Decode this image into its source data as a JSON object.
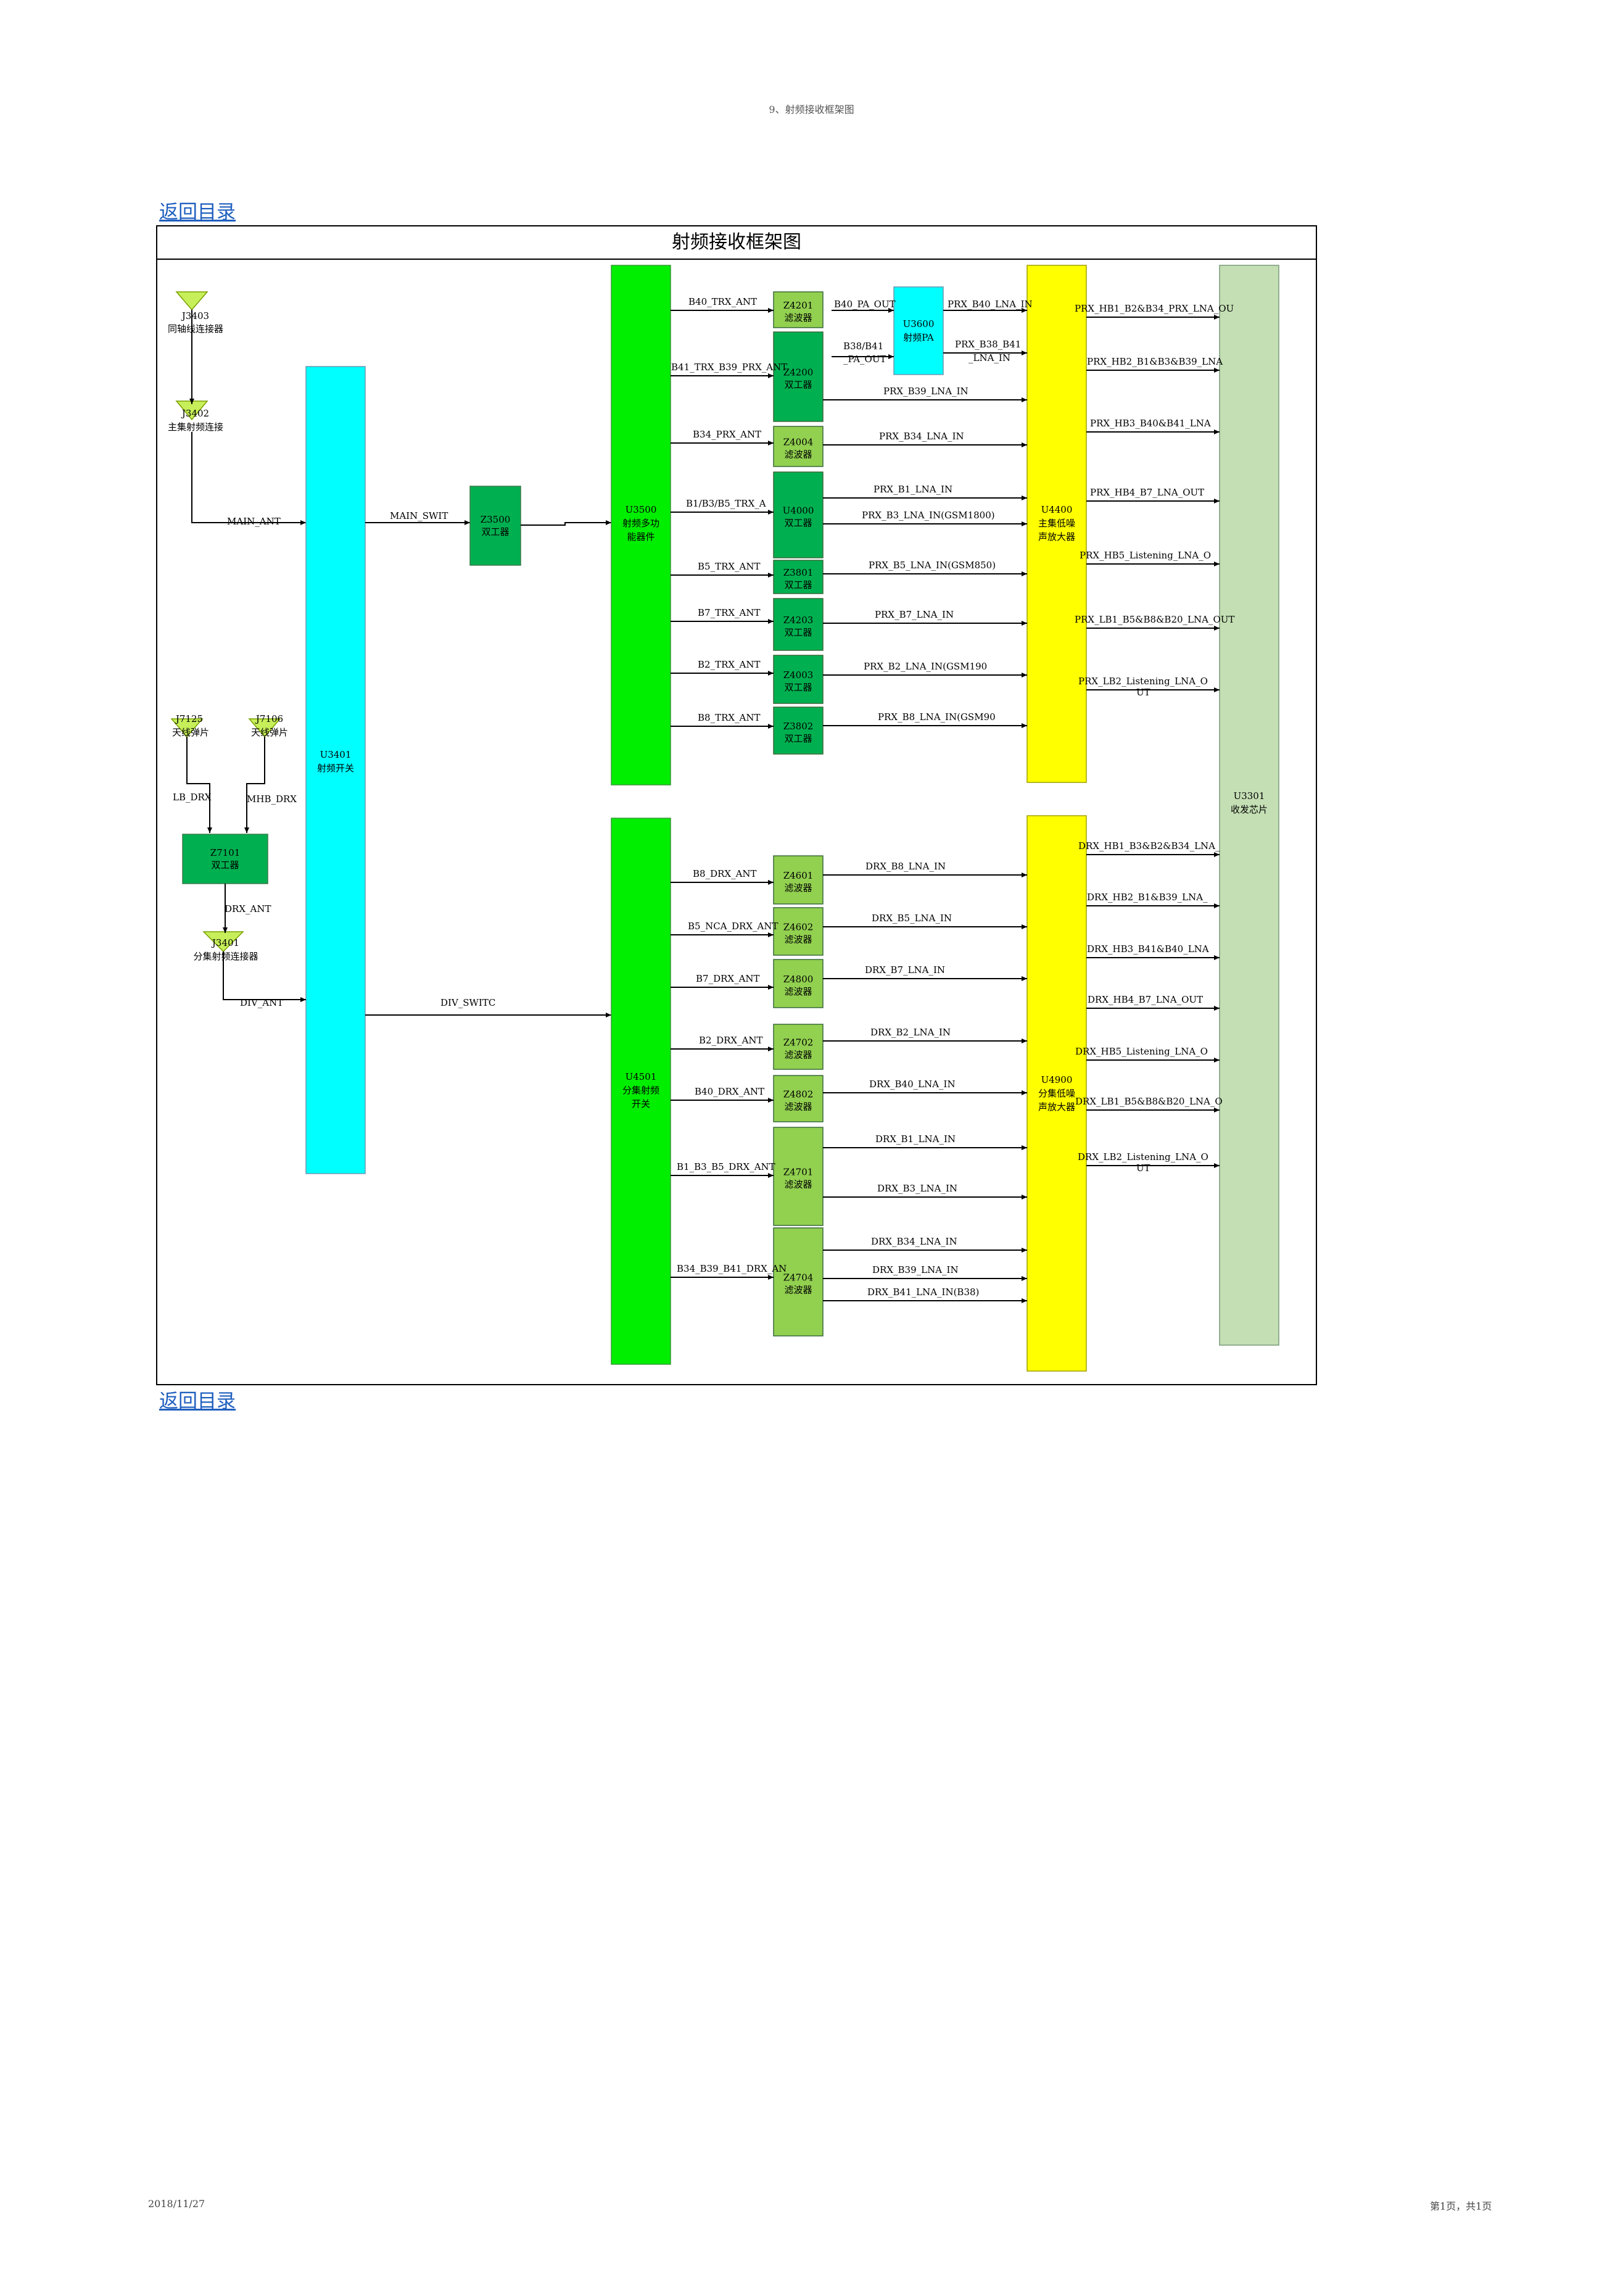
{
  "page_header": "9、射频接收框架图",
  "back_link_label": "返回目录",
  "diagram_title": "射频接收框架图",
  "footer": {
    "date": "2018/11/27",
    "page": "第1页，共1页"
  },
  "colors": {
    "green": "#00ee00",
    "cyan": "#00ffff",
    "yellow": "#ffff00",
    "dark_green": "#00b050",
    "light_green": "#92d050",
    "pale_green": "#c4dfb4"
  },
  "connectors": [
    {
      "id": "J3403",
      "label": "同轴线连接器"
    },
    {
      "id": "J3402",
      "label": "主集射频连接"
    },
    {
      "id": "J7125",
      "label": "天线弹片"
    },
    {
      "id": "J7106",
      "label": "天线弹片"
    },
    {
      "id": "J3401",
      "label": "分集射频连接器"
    }
  ],
  "blocks": {
    "u3401": [
      "U3401",
      "射频开关"
    ],
    "z3500": [
      "Z3500",
      "双工器"
    ],
    "z7101": [
      "Z7101",
      "双工器"
    ],
    "u3500": [
      "U3500",
      "射频多功",
      "能器件"
    ],
    "u4501": [
      "U4501",
      "分集射频",
      "开关"
    ],
    "u3600": [
      "U3600",
      "射频PA"
    ],
    "u4400": [
      "U4400",
      "主集低噪",
      "声放大器"
    ],
    "u4900": [
      "U4900",
      "分集低噪",
      "声放大器"
    ],
    "u3301": [
      "U3301",
      "收发芯片"
    ]
  },
  "filters": {
    "main": [
      [
        "Z4201",
        "滤波器"
      ],
      [
        "Z4200",
        "双工器"
      ],
      [
        "Z4004",
        "滤波器"
      ],
      [
        "U4000",
        "双工器"
      ],
      [
        "Z3801",
        "双工器"
      ],
      [
        "Z4203",
        "双工器"
      ],
      [
        "Z4003",
        "双工器"
      ],
      [
        "Z3802",
        "双工器"
      ]
    ],
    "div": [
      [
        "Z4601",
        "滤波器"
      ],
      [
        "Z4602",
        "滤波器"
      ],
      [
        "Z4800",
        "滤波器"
      ],
      [
        "Z4702",
        "滤波器"
      ],
      [
        "Z4802",
        "滤波器"
      ],
      [
        "Z4701",
        "滤波器"
      ],
      [
        "Z4704",
        "滤波器"
      ]
    ]
  },
  "signals": {
    "main_ant": "MAIN_ANT",
    "main_swit": "MAIN_SWIT",
    "lb_drx": "LB_DRX",
    "mhb_drx": "MHB_DRX",
    "drx_ant": "DRX_ANT",
    "div_ant": "DIV_ANT",
    "div_switc": "DIV_SWITC",
    "main_ant_lines": [
      "B40_TRX_ANT",
      "B41_TRX_B39_PRX_ANT",
      "B34_PRX_ANT",
      "B1/B3/B5_TRX_A",
      "B5_TRX_ANT",
      "B7_TRX_ANT",
      "B2_TRX_ANT",
      "B8_TRX_ANT"
    ],
    "pa_in": "B40_PA_OUT",
    "pa_in2": [
      "B38/B41",
      "_PA_OUT"
    ],
    "pa_out1": "PRX_B40_LNA_IN",
    "pa_out2": [
      "PRX_B38_B41",
      "_LNA_IN"
    ],
    "main_lna_in": [
      "PRX_B39_LNA_IN",
      "PRX_B34_LNA_IN",
      "PRX_B1_LNA_IN",
      "PRX_B3_LNA_IN(GSM1800)",
      "PRX_B5_LNA_IN(GSM850)",
      "PRX_B7_LNA_IN",
      "PRX_B2_LNA_IN(GSM190",
      "PRX_B8_LNA_IN(GSM90"
    ],
    "main_lna_out": [
      "PRX_HB1_B2&B34_PRX_LNA_OU",
      "PRX_HB2_B1&B3&B39_LNA",
      "PRX_HB3_B40&B41_LNA",
      "PRX_HB4_B7_LNA_OUT",
      "PRX_HB5_Listening_LNA_O",
      "PRX_LB1_B5&B8&B20_LNA_OUT",
      "PRX_LB2_Listening_LNA_O",
      "UT"
    ],
    "div_ant_lines": [
      "B8_DRX_ANT",
      "B5_NCA_DRX_ANT",
      "B7_DRX_ANT",
      "B2_DRX_ANT",
      "B40_DRX_ANT",
      "B1_B3_B5_DRX_ANT",
      "B34_B39_B41_DRX_AN"
    ],
    "div_lna_in": [
      "DRX_B8_LNA_IN",
      "DRX_B5_LNA_IN",
      "DRX_B7_LNA_IN",
      "DRX_B2_LNA_IN",
      "DRX_B40_LNA_IN",
      "DRX_B1_LNA_IN",
      "DRX_B3_LNA_IN",
      "DRX_B34_LNA_IN",
      "DRX_B39_LNA_IN",
      "DRX_B41_LNA_IN(B38)"
    ],
    "div_lna_out": [
      "DRX_HB1_B3&B2&B34_LNA_",
      "DRX_HB2_B1&B39_LNA_",
      "DRX_HB3_B41&B40_LNA",
      "DRX_HB4_B7_LNA_OUT",
      "DRX_HB5_Listening_LNA_O",
      "DRX_LB1_B5&B8&B20_LNA_O",
      "DRX_LB2_Listening_LNA_O",
      "UT"
    ]
  }
}
